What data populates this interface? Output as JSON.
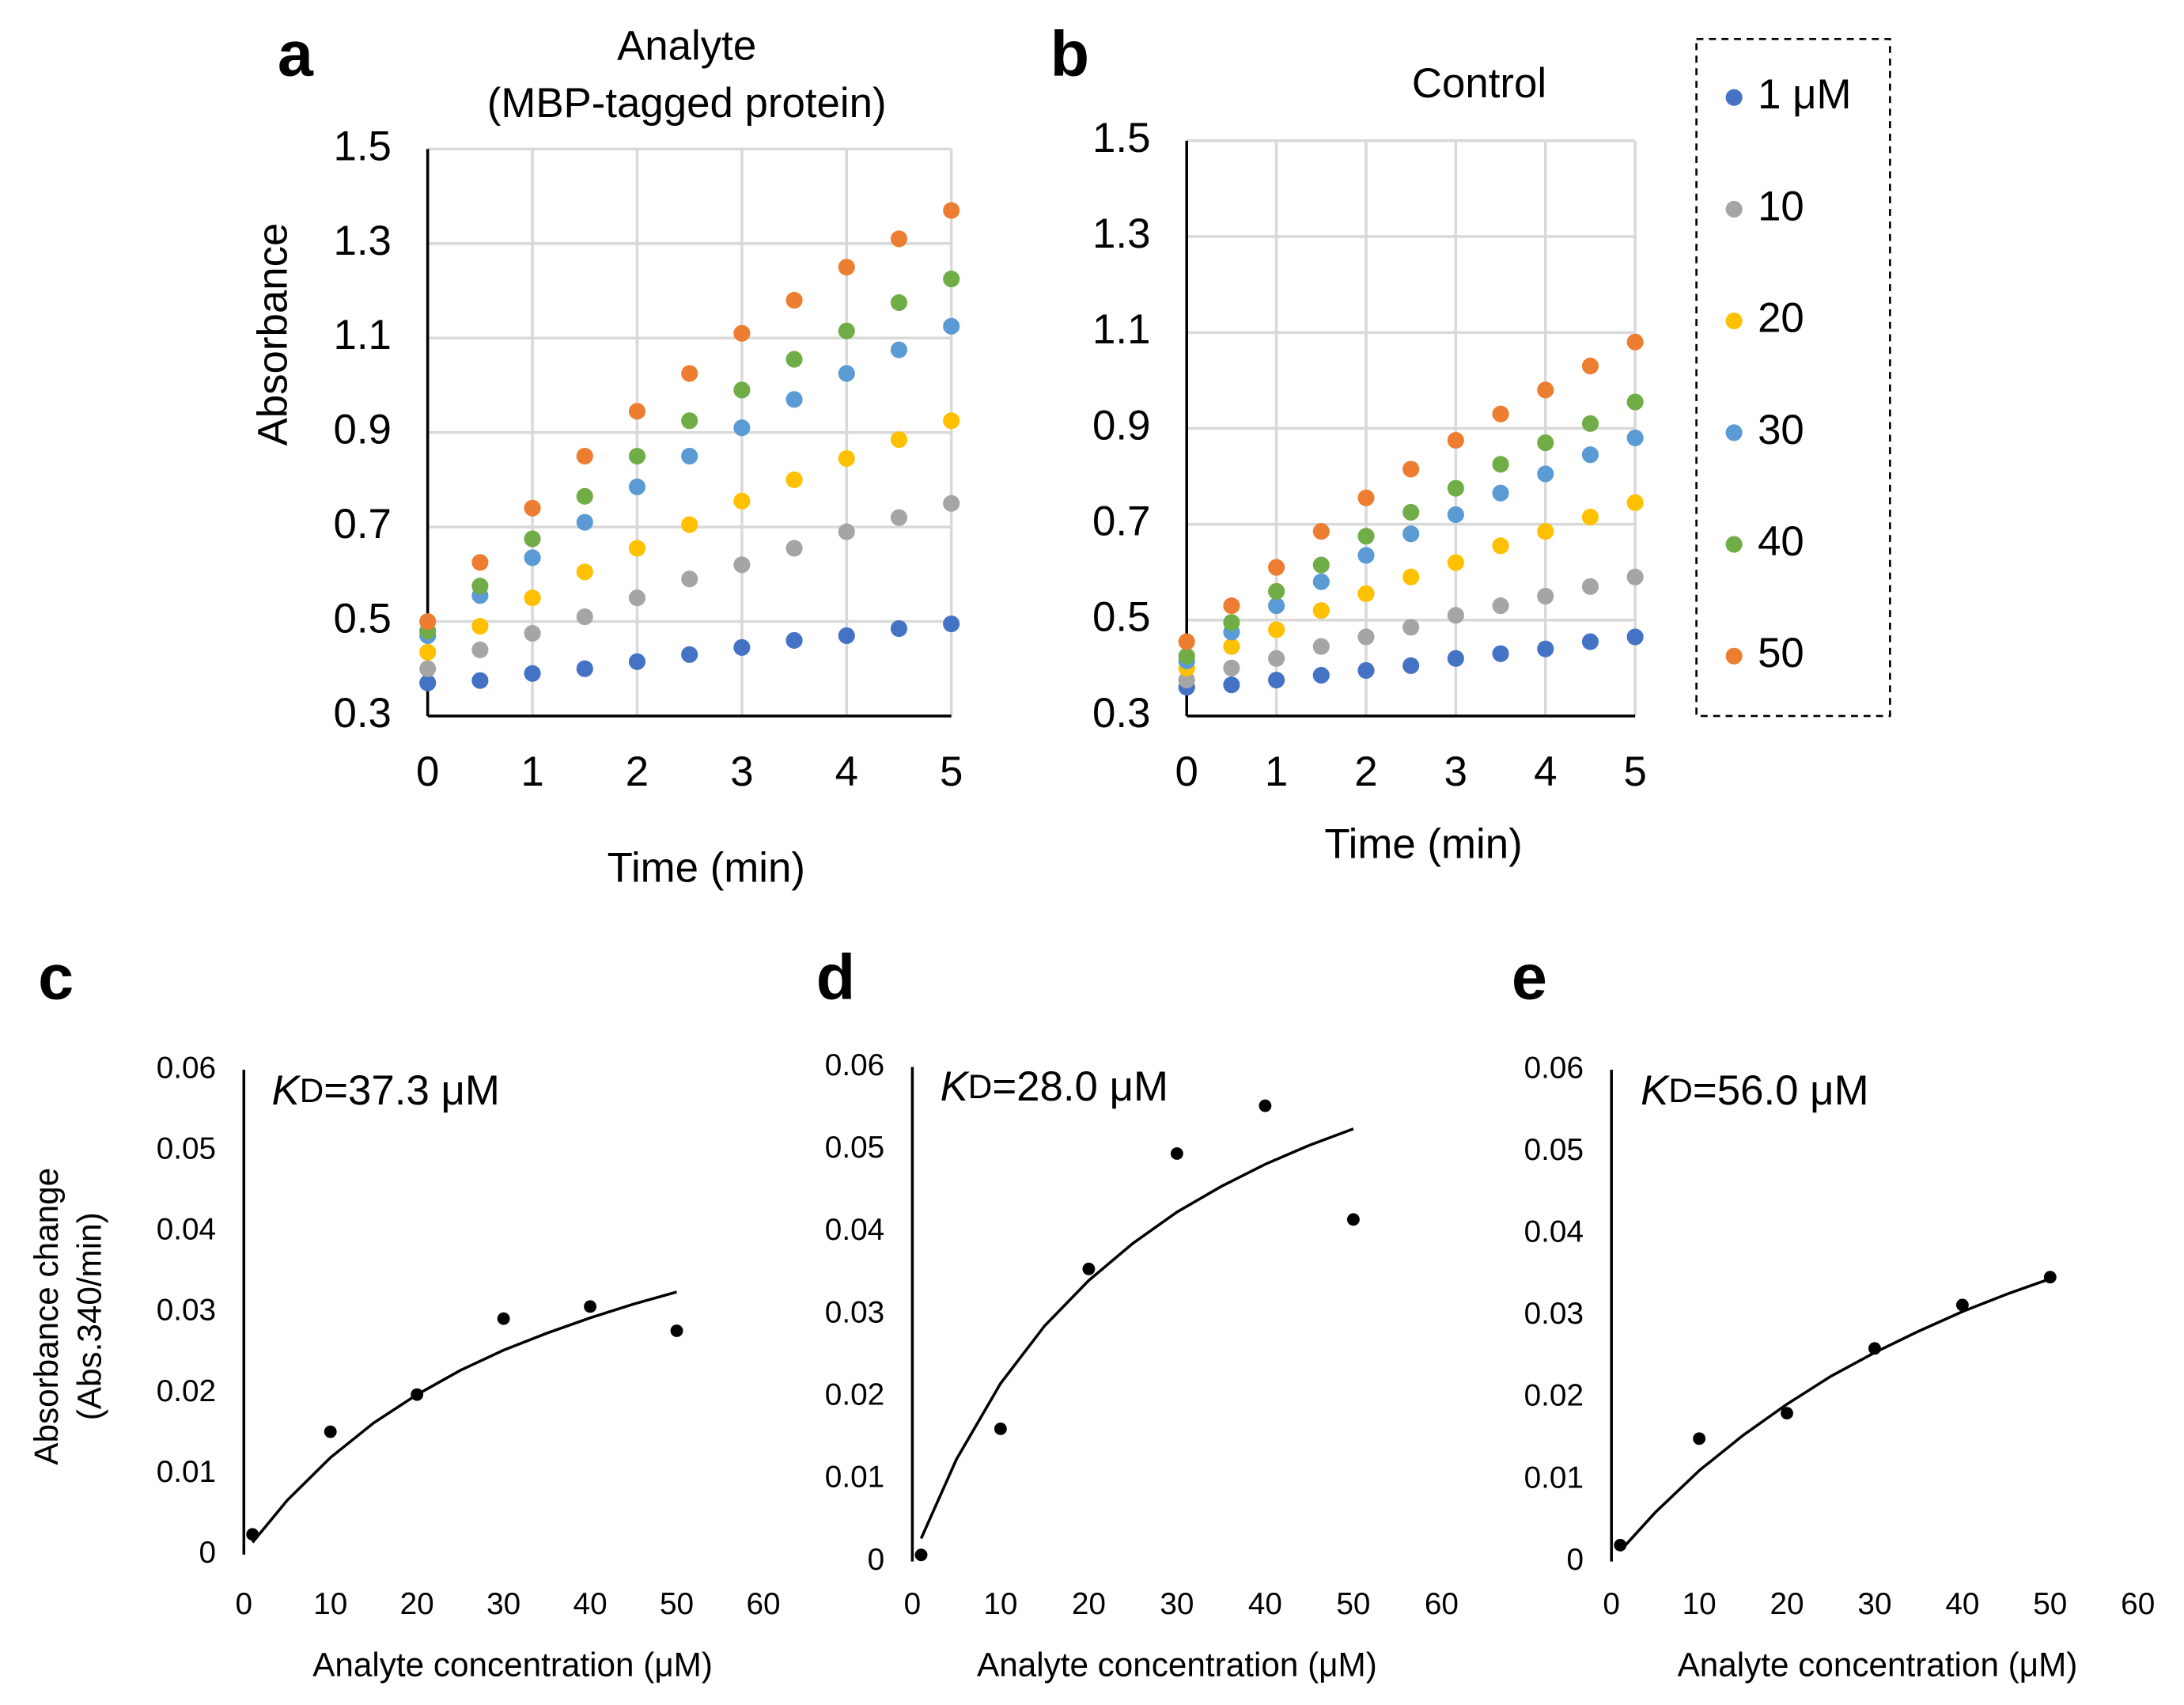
{
  "chart_data": [
    {
      "type": "scatter",
      "label": "a",
      "title": [
        "Analyte",
        "(MBP-tagged protein)"
      ],
      "x_label": "Time (min)",
      "y_label": "Absorbance",
      "x": [
        0,
        0.5,
        1,
        1.5,
        2,
        2.5,
        3,
        3.5,
        4,
        4.5,
        5
      ],
      "series": [
        {
          "color": "#4472c4",
          "values": [
            0.37,
            0.375,
            0.39,
            0.4,
            0.415,
            0.43,
            0.445,
            0.46,
            0.47,
            0.485,
            0.495
          ]
        },
        {
          "color": "#a5a5a5",
          "values": [
            0.4,
            0.44,
            0.475,
            0.51,
            0.55,
            0.59,
            0.62,
            0.655,
            0.69,
            0.72,
            0.75
          ]
        },
        {
          "color": "#ffc000",
          "values": [
            0.435,
            0.49,
            0.55,
            0.605,
            0.655,
            0.705,
            0.755,
            0.8,
            0.845,
            0.885,
            0.925
          ]
        },
        {
          "color": "#5b9bd5",
          "values": [
            0.47,
            0.555,
            0.635,
            0.71,
            0.785,
            0.85,
            0.91,
            0.97,
            1.025,
            1.075,
            1.125
          ]
        },
        {
          "color": "#70ad47",
          "values": [
            0.48,
            0.575,
            0.675,
            0.765,
            0.85,
            0.925,
            0.99,
            1.055,
            1.115,
            1.175,
            1.225
          ]
        },
        {
          "color": "#ed7d31",
          "values": [
            0.5,
            0.625,
            0.74,
            0.85,
            0.945,
            1.025,
            1.11,
            1.18,
            1.25,
            1.31,
            1.37
          ]
        }
      ],
      "xlim": [
        0,
        5
      ],
      "xticks": [
        0,
        1,
        2,
        3,
        4,
        5
      ],
      "ylim": [
        0.3,
        1.5
      ],
      "yticks": [
        0.3,
        0.5,
        0.7,
        0.9,
        1.1,
        1.3,
        1.5
      ],
      "grid": true
    },
    {
      "type": "scatter",
      "label": "b",
      "title": [
        "Control"
      ],
      "x_label": "Time (min)",
      "x": [
        0,
        0.5,
        1,
        1.5,
        2,
        2.5,
        3,
        3.5,
        4,
        4.5,
        5
      ],
      "series": [
        {
          "name": "1 μM",
          "color": "#4472c4",
          "values": [
            0.36,
            0.365,
            0.375,
            0.385,
            0.395,
            0.405,
            0.42,
            0.43,
            0.44,
            0.455,
            0.465
          ]
        },
        {
          "name": "10",
          "color": "#a5a5a5",
          "values": [
            0.375,
            0.4,
            0.42,
            0.445,
            0.465,
            0.485,
            0.51,
            0.53,
            0.55,
            0.57,
            0.59
          ]
        },
        {
          "name": "20",
          "color": "#ffc000",
          "values": [
            0.4,
            0.445,
            0.48,
            0.52,
            0.555,
            0.59,
            0.62,
            0.655,
            0.685,
            0.715,
            0.745
          ]
        },
        {
          "name": "30",
          "color": "#5b9bd5",
          "values": [
            0.415,
            0.475,
            0.53,
            0.58,
            0.635,
            0.68,
            0.72,
            0.765,
            0.805,
            0.845,
            0.88
          ]
        },
        {
          "name": "40",
          "color": "#70ad47",
          "values": [
            0.425,
            0.495,
            0.56,
            0.615,
            0.675,
            0.725,
            0.775,
            0.825,
            0.87,
            0.91,
            0.955
          ]
        },
        {
          "name": "50",
          "color": "#ed7d31",
          "values": [
            0.455,
            0.53,
            0.61,
            0.685,
            0.755,
            0.815,
            0.875,
            0.93,
            0.98,
            1.03,
            1.08
          ]
        }
      ],
      "xlim": [
        0,
        5
      ],
      "xticks": [
        0,
        1,
        2,
        3,
        4,
        5
      ],
      "ylim": [
        0.3,
        1.5
      ],
      "yticks": [
        0.3,
        0.5,
        0.7,
        0.9,
        1.1,
        1.3,
        1.5
      ],
      "grid": true,
      "legend": "right"
    },
    {
      "type": "scatter",
      "label": "c",
      "annotation": [
        "K",
        "D",
        "=37.3 μM"
      ],
      "x_label": "Analyte concentration (μM)",
      "y_label": [
        "Absorbance change",
        "(Abs.340/min)"
      ],
      "series": [
        {
          "color": "#000000",
          "x": [
            1,
            10,
            20,
            30,
            40,
            50
          ],
          "values": [
            0.0025,
            0.0152,
            0.0198,
            0.0292,
            0.0307,
            0.0277
          ]
        }
      ],
      "fit": {
        "color": "#000000",
        "x": [
          1,
          5,
          10,
          15,
          20,
          25,
          30,
          35,
          40,
          45,
          50
        ],
        "values": [
          0.0015,
          0.0067,
          0.012,
          0.0163,
          0.0198,
          0.0228,
          0.0253,
          0.0274,
          0.0293,
          0.031,
          0.0325
        ]
      },
      "xlim": [
        0,
        60
      ],
      "xticks": [
        0,
        10,
        20,
        30,
        40,
        50,
        60
      ],
      "ylim": [
        0,
        0.06
      ],
      "yticks": [
        0,
        0.01,
        0.02,
        0.03,
        0.04,
        0.05,
        0.06
      ],
      "grid": false
    },
    {
      "type": "scatter",
      "label": "d",
      "annotation": [
        "K",
        "D",
        "=28.0 μM"
      ],
      "x_label": "Analyte concentration (μM)",
      "series": [
        {
          "color": "#000000",
          "x": [
            1,
            10,
            20,
            30,
            40,
            50
          ],
          "values": [
            0.0008,
            0.0161,
            0.0355,
            0.0495,
            0.0553,
            0.0415
          ]
        }
      ],
      "fit": {
        "color": "#000000",
        "x": [
          1,
          5,
          10,
          15,
          20,
          25,
          30,
          35,
          40,
          45,
          50
        ],
        "values": [
          0.0028,
          0.0124,
          0.0216,
          0.0286,
          0.0341,
          0.0386,
          0.0424,
          0.0455,
          0.0482,
          0.0505,
          0.0525
        ]
      },
      "xlim": [
        0,
        60
      ],
      "xticks": [
        0,
        10,
        20,
        30,
        40,
        50,
        60
      ],
      "ylim": [
        0,
        0.06
      ],
      "yticks": [
        0,
        0.01,
        0.02,
        0.03,
        0.04,
        0.05,
        0.06
      ],
      "grid": false
    },
    {
      "type": "scatter",
      "label": "e",
      "annotation": [
        "K",
        "D",
        "=56.0 μM"
      ],
      "x_label": "Analyte concentration (μM)",
      "series": [
        {
          "color": "#000000",
          "x": [
            1,
            10,
            20,
            30,
            40,
            50
          ],
          "values": [
            0.002,
            0.015,
            0.0181,
            0.026,
            0.0313,
            0.0347
          ]
        }
      ],
      "fit": {
        "color": "#000000",
        "x": [
          1,
          5,
          10,
          15,
          20,
          25,
          30,
          35,
          40,
          45,
          50
        ],
        "values": [
          0.0013,
          0.006,
          0.0111,
          0.0154,
          0.0192,
          0.0226,
          0.0255,
          0.0281,
          0.0305,
          0.0326,
          0.0345
        ]
      },
      "xlim": [
        0,
        60
      ],
      "xticks": [
        0,
        10,
        20,
        30,
        40,
        50,
        60
      ],
      "ylim": [
        0,
        0.06
      ],
      "yticks": [
        0,
        0.01,
        0.02,
        0.03,
        0.04,
        0.05,
        0.06
      ],
      "grid": false
    }
  ]
}
